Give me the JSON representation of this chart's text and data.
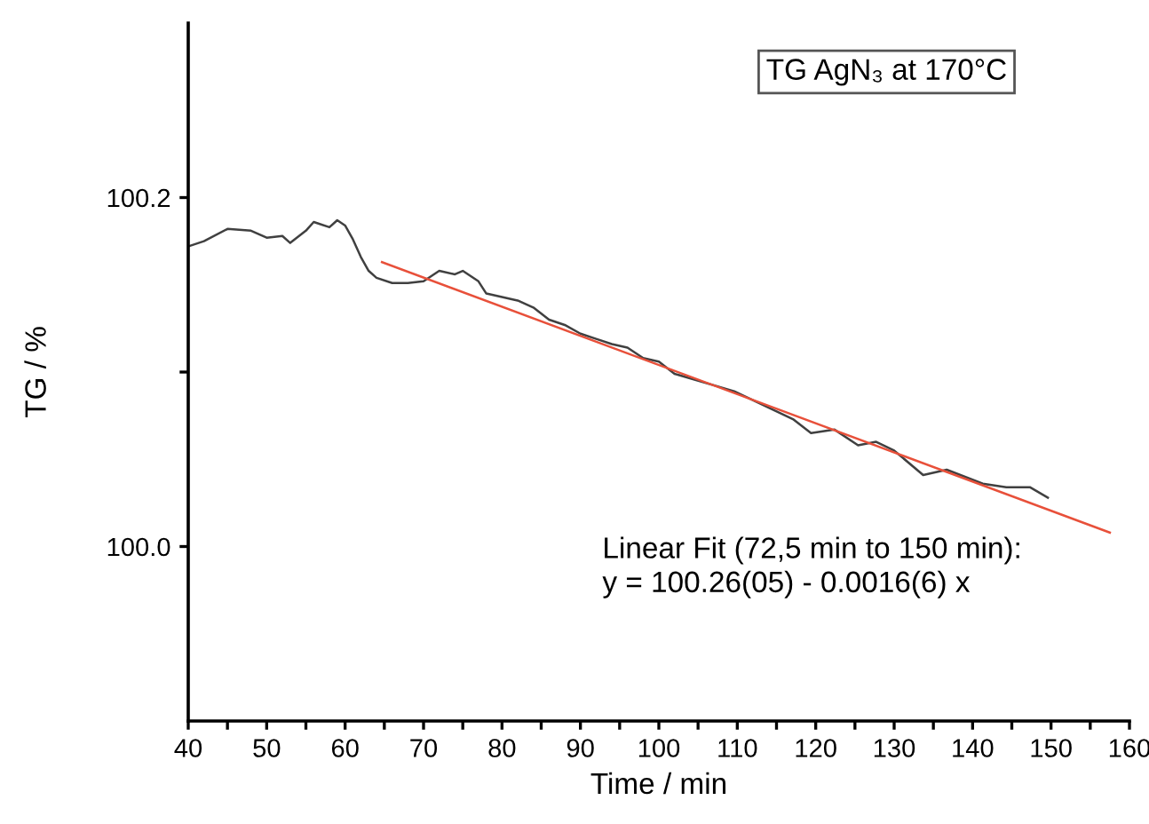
{
  "chart_data": {
    "type": "line",
    "xlabel": "Time / min",
    "ylabel": "TG / %",
    "xlim": [
      40,
      160
    ],
    "ylim": [
      99.9,
      100.3
    ],
    "xticks": [
      40,
      {
        "value": 45,
        "label": null
      },
      50,
      {
        "value": 55,
        "label": null
      },
      60,
      {
        "value": 65,
        "label": null
      },
      70,
      {
        "value": 75,
        "label": null
      },
      80,
      {
        "value": 85,
        "label": null
      },
      90,
      {
        "value": 95,
        "label": null
      },
      100,
      {
        "value": 105,
        "label": null
      },
      110,
      {
        "value": 115,
        "label": null
      },
      120,
      {
        "value": 125,
        "label": null
      },
      130,
      {
        "value": 135,
        "label": null
      },
      140,
      {
        "value": 145,
        "label": null
      },
      150,
      {
        "value": 155,
        "label": null
      },
      160
    ],
    "yticks": [
      {
        "value": 100.0,
        "label": "100.0"
      },
      {
        "value": 100.1,
        "label": null
      },
      100.2
    ],
    "grid": false,
    "legend": false,
    "series": [
      {
        "color": "#404040",
        "x": [
          40,
          42,
          45,
          48,
          50,
          52,
          53,
          55,
          56,
          58,
          59,
          60,
          61,
          62,
          63,
          64,
          66,
          68,
          70,
          72,
          74,
          75,
          77,
          78,
          80,
          82,
          84,
          86,
          88,
          90,
          92,
          94,
          96,
          98,
          100,
          102,
          109.6,
          117.1,
          119.4,
          122.4,
          125.4,
          127.7,
          130,
          133.7,
          136.7,
          141.3,
          144.3,
          147.3,
          149.6
        ],
        "values": [
          100.172,
          100.175,
          100.182,
          100.181,
          100.177,
          100.178,
          100.174,
          100.181,
          100.186,
          100.183,
          100.187,
          100.184,
          100.176,
          100.166,
          100.158,
          100.154,
          100.151,
          100.151,
          100.152,
          100.158,
          100.156,
          100.158,
          100.152,
          100.145,
          100.143,
          100.141,
          100.137,
          100.13,
          100.127,
          100.122,
          100.119,
          100.116,
          100.114,
          100.108,
          100.106,
          100.099,
          100.089,
          100.073,
          100.065,
          100.067,
          100.058,
          100.06,
          100.055,
          100.041,
          100.044,
          100.036,
          100.034,
          100.034,
          100.028
        ]
      },
      {
        "type": "line",
        "color": "#e8503a",
        "x": [
          64.7,
          157.5
        ],
        "values": [
          100.163,
          100.008
        ]
      }
    ],
    "annotations": [
      "TG AgN₃ at 170°C",
      "Linear Fit (72,5 min to 150 min):\ny = 100.26(05) - 0.0016(6) x"
    ]
  }
}
